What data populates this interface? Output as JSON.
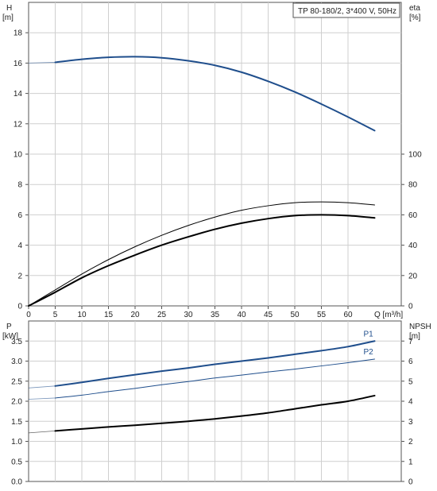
{
  "chart_data": [
    {
      "type": "line",
      "legend": "TP 80-180/2, 3*400 V, 50Hz",
      "xlabel": "Q [m³/h]",
      "xlim": [
        0,
        70
      ],
      "xticks": [
        0,
        5,
        10,
        15,
        20,
        25,
        30,
        35,
        40,
        45,
        50,
        55,
        60
      ],
      "y_left": {
        "label_lines": [
          "H",
          "[m]"
        ],
        "ylim": [
          0,
          20
        ],
        "ticks": [
          0,
          2,
          4,
          6,
          8,
          10,
          12,
          14,
          16,
          18
        ]
      },
      "y_right": {
        "label_lines": [
          "eta",
          "[%]"
        ],
        "ylim": [
          0,
          200
        ],
        "ticks": [
          0,
          20,
          40,
          60,
          80,
          100
        ]
      },
      "grid": true,
      "series": [
        {
          "axis": "left",
          "color": "#1f4e8c",
          "width": 2,
          "dashed_start": true,
          "x": [
            0,
            5,
            10,
            15,
            20,
            25,
            30,
            35,
            40,
            45,
            50,
            55,
            60,
            65
          ],
          "y": [
            16.0,
            16.05,
            16.25,
            16.38,
            16.42,
            16.35,
            16.15,
            15.85,
            15.4,
            14.8,
            14.1,
            13.3,
            12.45,
            11.55
          ]
        },
        {
          "axis": "right",
          "color": "#000000",
          "width": 1,
          "x": [
            0,
            5,
            10,
            15,
            20,
            25,
            30,
            35,
            40,
            45,
            50,
            55,
            60,
            65
          ],
          "y": [
            0,
            10.5,
            21,
            30.5,
            39,
            46.5,
            53,
            58.5,
            63,
            66,
            68,
            68.5,
            68,
            66.5
          ]
        },
        {
          "axis": "right",
          "color": "#000000",
          "width": 2,
          "x": [
            0,
            5,
            10,
            15,
            20,
            25,
            30,
            35,
            40,
            45,
            50,
            55,
            60,
            65
          ],
          "y": [
            0,
            9,
            18.5,
            26.5,
            33.5,
            40,
            45.5,
            50.5,
            54.5,
            57.5,
            59.5,
            60,
            59.5,
            58
          ]
        }
      ]
    },
    {
      "type": "line",
      "xlim": [
        0,
        70
      ],
      "y_left": {
        "label_lines": [
          "P",
          "[kW]"
        ],
        "ylim": [
          0,
          4.0
        ],
        "ticks": [
          "0.0",
          "0.5",
          "1.0",
          "1.5",
          "2.0",
          "2.5",
          "3.0",
          "3.5"
        ]
      },
      "y_right": {
        "label_lines": [
          "NPSH",
          "[m]"
        ],
        "ylim": [
          0,
          8
        ],
        "ticks": [
          0,
          1,
          2,
          3,
          4,
          5,
          6,
          7
        ]
      },
      "grid": true,
      "series": [
        {
          "name": "P1",
          "axis": "left",
          "color": "#1f4e8c",
          "width": 2,
          "dashed_start": true,
          "x": [
            0,
            5,
            10,
            15,
            20,
            25,
            30,
            35,
            40,
            45,
            50,
            55,
            60,
            65
          ],
          "y": [
            2.33,
            2.38,
            2.47,
            2.57,
            2.66,
            2.75,
            2.83,
            2.92,
            3.0,
            3.08,
            3.17,
            3.26,
            3.36,
            3.5
          ]
        },
        {
          "name": "P2",
          "axis": "left",
          "color": "#1f4e8c",
          "width": 1,
          "dashed_start": true,
          "x": [
            0,
            5,
            10,
            15,
            20,
            25,
            30,
            35,
            40,
            45,
            50,
            55,
            60,
            65
          ],
          "y": [
            2.05,
            2.08,
            2.15,
            2.24,
            2.32,
            2.41,
            2.49,
            2.58,
            2.65,
            2.73,
            2.8,
            2.88,
            2.96,
            3.05
          ]
        },
        {
          "axis": "right",
          "color": "#000000",
          "width": 2,
          "dashed_start": true,
          "x": [
            0,
            5,
            10,
            15,
            20,
            25,
            30,
            35,
            40,
            45,
            50,
            55,
            60,
            65
          ],
          "y": [
            2.42,
            2.52,
            2.62,
            2.72,
            2.8,
            2.9,
            3.0,
            3.12,
            3.26,
            3.42,
            3.62,
            3.82,
            4.0,
            4.28
          ]
        }
      ]
    }
  ]
}
